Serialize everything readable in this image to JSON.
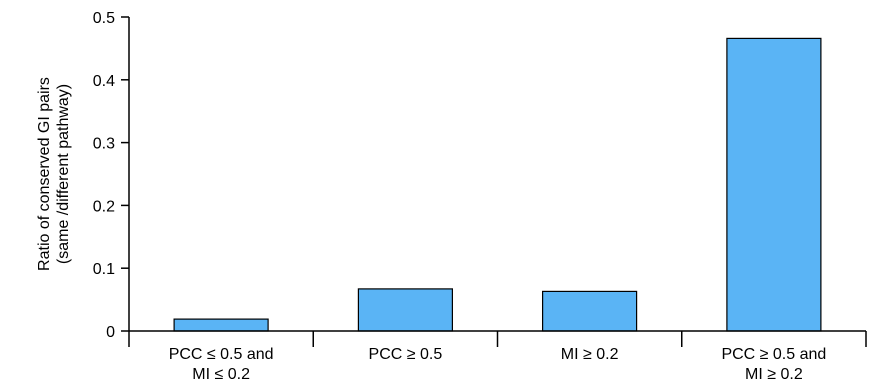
{
  "chart_data": {
    "type": "bar",
    "categories": [
      [
        "PCC ≤ 0.5 and",
        "MI ≤ 0.2"
      ],
      [
        "PCC ≥ 0.5"
      ],
      [
        "MI ≥ 0.2"
      ],
      [
        "PCC ≥ 0.5 and",
        "MI ≥ 0.2"
      ]
    ],
    "values": [
      0.019,
      0.067,
      0.063,
      0.466
    ],
    "ylabel": [
      "Ratio of conserved GI pairs",
      "(same /different pathway)"
    ],
    "xlabel": "",
    "title": "",
    "ylim": [
      0,
      0.5
    ],
    "yticks": [
      0,
      0.1,
      0.2,
      0.3,
      0.4,
      0.5
    ],
    "ytick_labels": [
      "0",
      "0.1",
      "0.2",
      "0.3",
      "0.4",
      "0.5"
    ],
    "grid": false,
    "legend": "none",
    "colors": {
      "bar_fill": "#5ab4f5",
      "bar_stroke": "#000000",
      "axis": "#000000"
    }
  }
}
